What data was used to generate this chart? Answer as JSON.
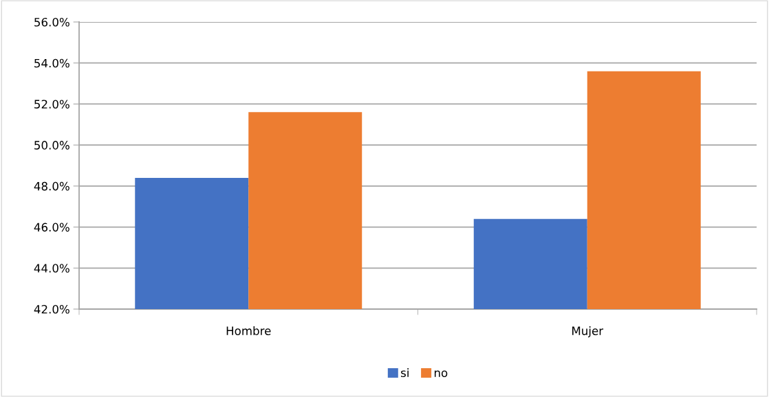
{
  "chart_data": {
    "type": "bar",
    "categories": [
      "Hombre",
      "Mujer"
    ],
    "series": [
      {
        "name": "si",
        "color": "#4472c4",
        "values": [
          48.4,
          46.4
        ]
      },
      {
        "name": "no",
        "color": "#ed7d31",
        "values": [
          51.6,
          53.6
        ]
      }
    ],
    "ylim": [
      42,
      56
    ],
    "yticks": [
      {
        "value": 42,
        "label": "42.0%"
      },
      {
        "value": 44,
        "label": "44.0%"
      },
      {
        "value": 46,
        "label": "46.0%"
      },
      {
        "value": 48,
        "label": "48.0%"
      },
      {
        "value": 50,
        "label": "50.0%"
      },
      {
        "value": 52,
        "label": "52.0%"
      },
      {
        "value": 54,
        "label": "54.0%"
      },
      {
        "value": 56,
        "label": "56.0%"
      }
    ],
    "grid": "y",
    "legend": "bottom"
  }
}
